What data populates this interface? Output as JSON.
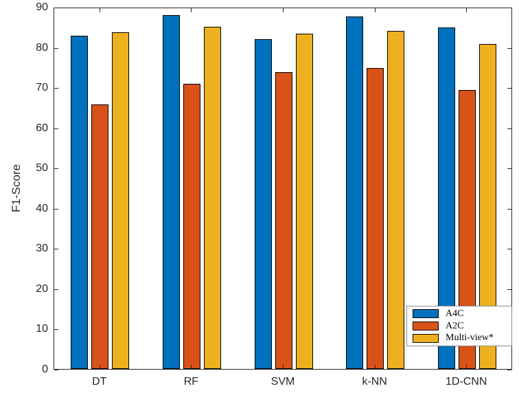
{
  "chart_data": {
    "type": "bar",
    "title": "",
    "xlabel": "",
    "ylabel": "F1-Score",
    "categories": [
      "DT",
      "RF",
      "SVM",
      "k-NN",
      "1D-CNN"
    ],
    "series": [
      {
        "name": "A4C",
        "color": "#0072BD",
        "values": [
          82.9,
          87.9,
          81.9,
          87.6,
          84.8
        ]
      },
      {
        "name": "A2C",
        "color": "#D95319",
        "values": [
          65.8,
          70.9,
          73.8,
          74.8,
          69.4
        ]
      },
      {
        "name": "Multi-view*",
        "color": "#EDB120",
        "values": [
          83.6,
          85.1,
          83.3,
          84.0,
          80.7
        ]
      }
    ],
    "ylim": [
      0,
      90
    ],
    "yticks": [
      0,
      10,
      20,
      30,
      40,
      50,
      60,
      70,
      80,
      90
    ],
    "grid": false,
    "legend_position": "southeast"
  },
  "colors": {
    "axis": "#262626",
    "bar_edge": "#000000",
    "legend_border": "#8c8c8c",
    "background": "#ffffff"
  }
}
